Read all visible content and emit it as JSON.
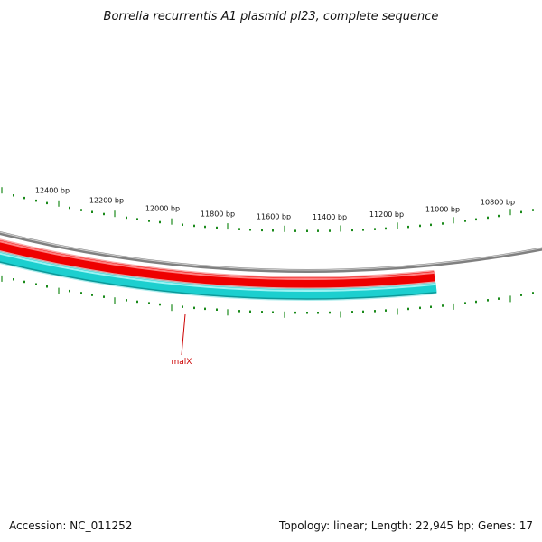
{
  "title": "Borrelia recurrentis A1 plasmid pl23, complete sequence",
  "accession": "Accession: NC_011252",
  "summary": "Topology: linear; Length: 22,945 bp; Genes: 17",
  "colors": {
    "backbone": "#808080",
    "forward_gene": "#ee0000",
    "reverse_gene": "#1ccfcf",
    "ticks": "#1a8a1a",
    "gene_label": "#cc0000"
  },
  "ruler": {
    "labels": [
      "12400 bp",
      "12200 bp",
      "12000 bp",
      "11800 bp",
      "11600 bp",
      "11400 bp",
      "11200 bp",
      "11000 bp",
      "10800 bp"
    ]
  },
  "genes": [
    {
      "name": "malX",
      "strand": "reverse",
      "color_key": "reverse_gene"
    }
  ]
}
